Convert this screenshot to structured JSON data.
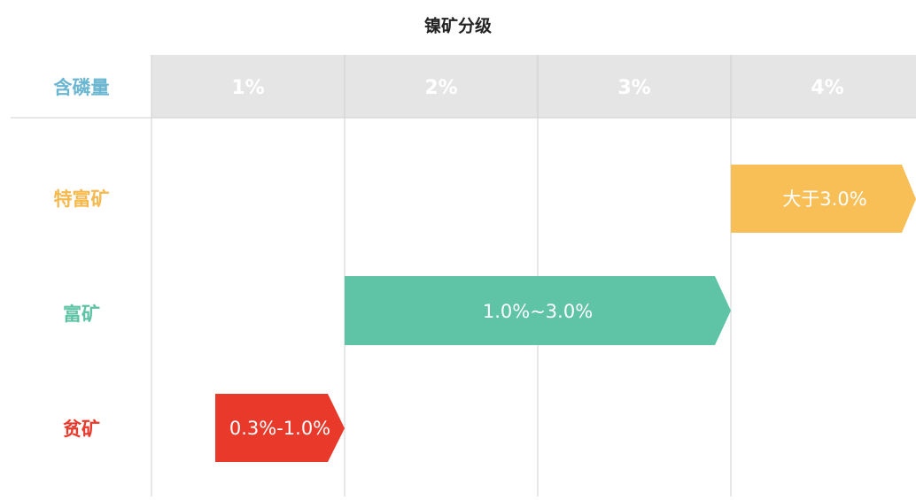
{
  "header": {
    "title": "镍矿分级",
    "corner": "含磷量",
    "columns": [
      "1%",
      "2%",
      "3%",
      "4%"
    ]
  },
  "rows": [
    {
      "label": "特富矿",
      "range": "大于3.0%"
    },
    {
      "label": "富矿",
      "range": "1.0%~3.0%"
    },
    {
      "label": "贫矿",
      "range": "0.3%-1.0%"
    }
  ]
}
